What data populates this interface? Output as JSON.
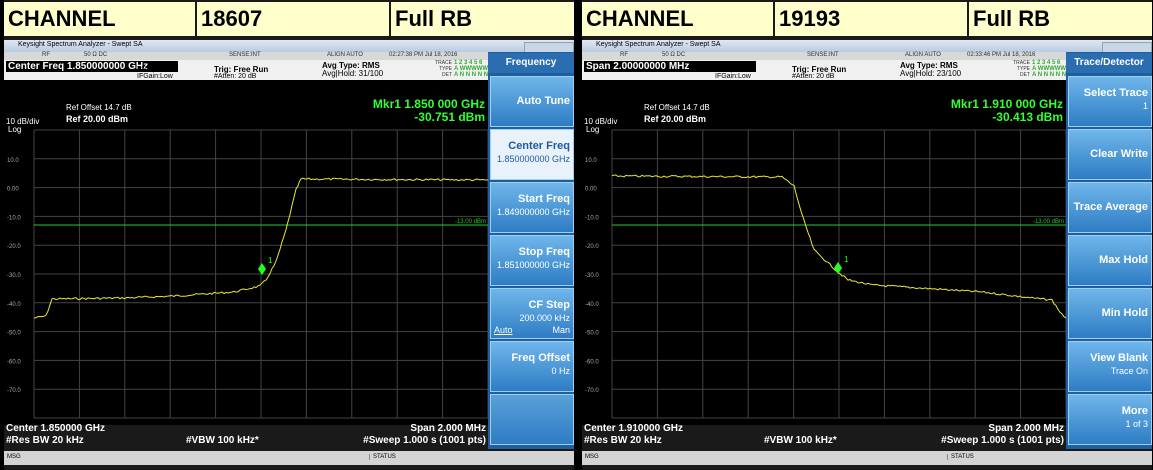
{
  "panels": [
    {
      "header": {
        "label": "CHANNEL",
        "channel": "18607",
        "rb": "Full RB"
      },
      "window_title": "Keysight Spectrum Analyzer - Swept SA",
      "status": {
        "rf": "RF",
        "imp": "50 Ω  DC",
        "sense": "SENSE:INT",
        "align": "ALIGN AUTO",
        "time": "02:27:38 PM Jul 18, 2016"
      },
      "setting": "Center Freq 1.850000000 GHz",
      "pno": "PNO: Wide",
      "ifgain": "IFGain:Low",
      "trig": "Trig: Free Run",
      "atten": "#Atten: 20 dB",
      "avg_type": "Avg Type: RMS",
      "avg_hold": "Avg|Hold: 31/100",
      "trace": {
        "trace": "TRACE",
        "trace_val": "1 2 3 4 5 6",
        "type": "TYPE",
        "type_val": "A WWWWW",
        "det": "DET",
        "det_val": "A N N N N N"
      },
      "ref_offset": "Ref Offset 14.7 dB",
      "scale": "10 dB/div",
      "ref": "Ref 20.00 dBm",
      "log": "Log",
      "marker_freq": "Mkr1 1.850 000 GHz",
      "marker_level": "-30.751 dBm",
      "marker_id": "1",
      "y_labels": [
        "10.0",
        "0.00",
        "-10.0",
        "-20.0",
        "-30.0",
        "-40.0",
        "-50.0",
        "-60.0",
        "-70.0"
      ],
      "limit_label": "-13.00 dBm",
      "center": "Center 1.850000 GHz",
      "rbw": "#Res BW 20 kHz",
      "vbw": "#VBW 100 kHz*",
      "span": "Span 2.000 MHz",
      "sweep": "#Sweep  1.000 s (1001 pts)",
      "msg": "MSG",
      "status_bar": "STATUS",
      "menu": {
        "title": "Frequency",
        "items": [
          {
            "label": "Auto Tune"
          },
          {
            "label": "Center Freq",
            "value": "1.850000000 GHz"
          },
          {
            "label": "Start Freq",
            "value": "1.849000000 GHz"
          },
          {
            "label": "Stop Freq",
            "value": "1.851000000 GHz"
          },
          {
            "label": "CF Step",
            "value": "200.000 kHz",
            "left": "Auto",
            "right": "Man"
          },
          {
            "label": "Freq Offset",
            "value": "0 Hz"
          }
        ]
      }
    },
    {
      "header": {
        "label": "CHANNEL",
        "channel": "19193",
        "rb": "Full RB"
      },
      "window_title": "Keysight Spectrum Analyzer - Swept SA",
      "status": {
        "rf": "RF",
        "imp": "50 Ω  DC",
        "sense": "SENSE:INT",
        "align": "ALIGN AUTO",
        "time": "02:33:46 PM Jul 18, 2016"
      },
      "setting": "Span 2.00000000 MHz",
      "pno": "PNO: Wide",
      "ifgain": "IFGain:Low",
      "trig": "Trig: Free Run",
      "atten": "#Atten: 20 dB",
      "avg_type": "Avg Type: RMS",
      "avg_hold": "Avg|Hold: 23/100",
      "trace": {
        "trace": "TRACE",
        "trace_val": "1 2 3 4 5 6",
        "type": "TYPE",
        "type_val": "A WWWWW",
        "det": "DET",
        "det_val": "A N N N N N"
      },
      "ref_offset": "Ref Offset 14.7 dB",
      "scale": "10 dB/div",
      "ref": "Ref 20.00 dBm",
      "log": "Log",
      "marker_freq": "Mkr1 1.910 000 GHz",
      "marker_level": "-30.413 dBm",
      "marker_id": "1",
      "y_labels": [
        "10.0",
        "0.00",
        "-10.0",
        "-20.0",
        "-30.0",
        "-40.0",
        "-50.0",
        "-60.0",
        "-70.0"
      ],
      "limit_label": "-13.00 dBm",
      "center": "Center 1.910000 GHz",
      "rbw": "#Res BW 20 kHz",
      "vbw": "#VBW 100 kHz*",
      "span": "Span 2.000 MHz",
      "sweep": "#Sweep  1.000 s (1001 pts)",
      "msg": "MSG",
      "status_bar": "STATUS",
      "menu": {
        "title": "Trace/Detector",
        "items": [
          {
            "label": "Select Trace",
            "value": "1"
          },
          {
            "label": "Clear Write"
          },
          {
            "label": "Trace Average"
          },
          {
            "label": "Max Hold"
          },
          {
            "label": "Min Hold"
          },
          {
            "label": "View Blank",
            "value": "Trace On"
          },
          {
            "label": "More",
            "value": "1 of 3"
          }
        ]
      }
    }
  ]
}
